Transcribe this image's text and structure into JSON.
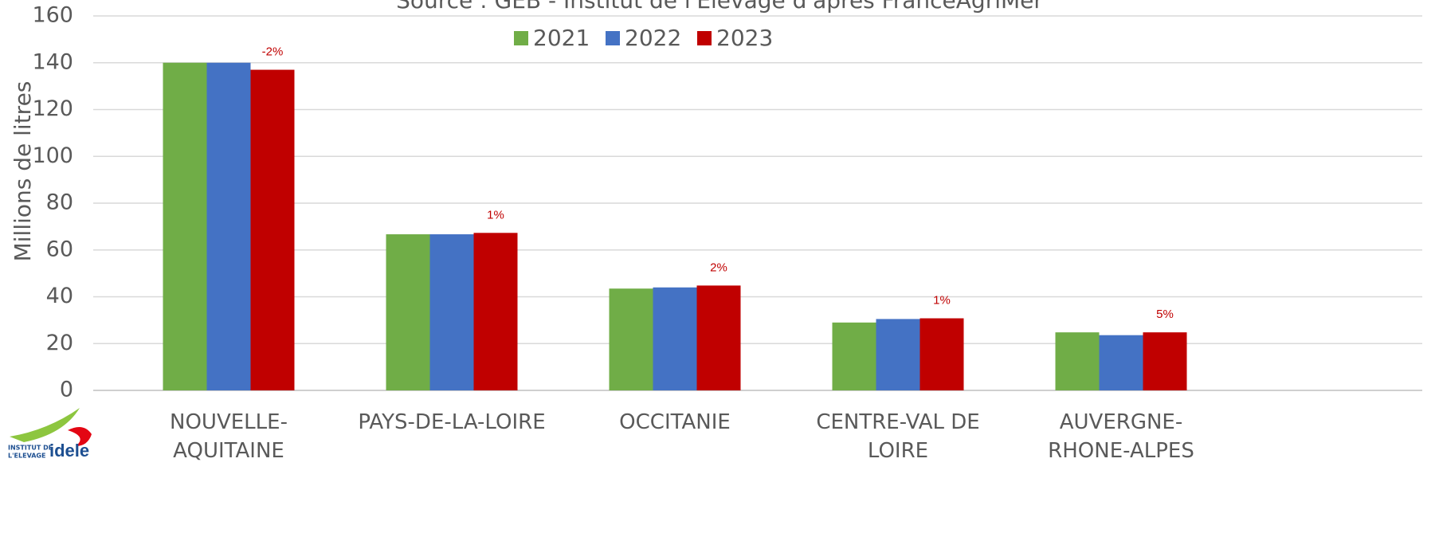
{
  "chart_data": {
    "type": "bar",
    "title": "Source : GEB - Institut de l'Elevage d'après FranceAgriMer",
    "y_label": "Millions de litres",
    "categories": [
      "NOUVELLE-\nAQUITAINE",
      "PAYS-DE-LA-LOIRE",
      "OCCITANIE",
      "CENTRE-VAL DE\nLOIRE",
      "AUVERGNE-\nRHONE-ALPES"
    ],
    "series": [
      {
        "name": "2021",
        "color": "#70ad47",
        "values": [
          140,
          66.7,
          43.5,
          29,
          24.8
        ]
      },
      {
        "name": "2022",
        "color": "#4472c4",
        "values": [
          140,
          66.7,
          44,
          30.5,
          23.6
        ]
      },
      {
        "name": "2023",
        "color": "#c00000",
        "values": [
          137,
          67.3,
          44.8,
          30.8,
          24.8
        ]
      }
    ],
    "annotations": [
      "-2%",
      "1%",
      "2%",
      "1%",
      "5%"
    ],
    "ylim": [
      0,
      160
    ],
    "yticks": [
      0,
      20,
      40,
      60,
      80,
      100,
      120,
      140,
      160
    ],
    "grid": true,
    "legend": "top",
    "logo": {
      "line1": "INSTITUT DE",
      "line2": "L'ELEVAGE",
      "name": "idele"
    }
  }
}
